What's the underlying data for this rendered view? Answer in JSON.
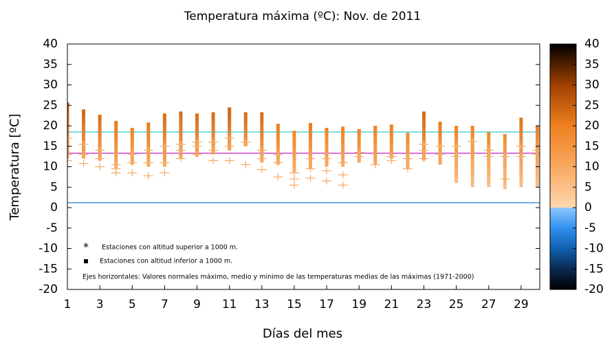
{
  "chart_data": {
    "type": "range",
    "title": "Temperatura máxima  (ºC): Nov.  de  2011",
    "xlabel": "Días del mes",
    "ylabel": "Temperatura  [ºC]",
    "x": [
      1,
      2,
      3,
      4,
      5,
      6,
      7,
      8,
      9,
      10,
      11,
      12,
      13,
      14,
      15,
      16,
      17,
      18,
      19,
      20,
      21,
      22,
      23,
      24,
      25,
      26,
      27,
      28,
      29,
      30
    ],
    "high": [
      25.7,
      24,
      22.7,
      21.2,
      19.5,
      20.8,
      23,
      23.5,
      23,
      23.3,
      24.5,
      23.3,
      23.3,
      20.5,
      18.8,
      20.7,
      19.5,
      19.8,
      19.2,
      20,
      20.3,
      18.3,
      23.5,
      21,
      20,
      20,
      18.5,
      18,
      22,
      20
    ],
    "low": [
      12,
      12,
      11.5,
      9.5,
      10.5,
      10,
      10,
      12,
      12.5,
      13,
      14,
      15,
      11,
      10.5,
      8.5,
      9.5,
      10,
      10,
      11,
      10.5,
      12,
      9.5,
      11.5,
      10.5,
      6,
      5,
      5,
      4.5,
      5,
      5
    ],
    "plus": [
      [
        11.5,
        13,
        15,
        17
      ],
      [
        10.8,
        13,
        15.5
      ],
      [
        10,
        12,
        14
      ],
      [
        8.5,
        9.5,
        10.5
      ],
      [
        8.5,
        11,
        13
      ],
      [
        7.8,
        11,
        14
      ],
      [
        8.5,
        11,
        15
      ],
      [
        12,
        14,
        15.5
      ],
      [
        13,
        15,
        16
      ],
      [
        11.5,
        14,
        16
      ],
      [
        11.5,
        15,
        17
      ],
      [
        10.5,
        16
      ],
      [
        9.3,
        12,
        14
      ],
      [
        7.5,
        11,
        13
      ],
      [
        5.5,
        7,
        8.5
      ],
      [
        7.2,
        9.5,
        12
      ],
      [
        6.5,
        9,
        12
      ],
      [
        5.5,
        8,
        11
      ],
      [
        12.5,
        13.5
      ],
      [
        10.5
      ],
      [
        11.5,
        12.5
      ],
      [
        9.5,
        12
      ],
      [
        12,
        14,
        15.5
      ],
      [
        13,
        15
      ],
      [
        12.5,
        15
      ],
      [
        16.2
      ],
      [
        12.5,
        14
      ],
      [
        7,
        12.5
      ],
      [
        12.5,
        15
      ],
      [
        13,
        14
      ]
    ],
    "xlim": [
      1,
      30.15
    ],
    "xticks": [
      1,
      3,
      5,
      7,
      9,
      11,
      13,
      15,
      17,
      19,
      21,
      23,
      25,
      27,
      29
    ],
    "ylim": [
      -20,
      40
    ],
    "yticks": [
      -20,
      -15,
      -10,
      -5,
      0,
      5,
      10,
      15,
      20,
      25,
      30,
      35,
      40
    ],
    "hlines": [
      {
        "value": 18.5,
        "color": "#40d0d0"
      },
      {
        "value": 13.3,
        "color": "#c020c0"
      },
      {
        "value": 1.2,
        "color": "#2080e0"
      }
    ],
    "plus_color": "#f4b070",
    "colorbar": {
      "lim": [
        -20,
        40
      ],
      "ticks": [
        -20,
        -15,
        -10,
        -5,
        0,
        5,
        10,
        15,
        20,
        25,
        30,
        35,
        40
      ],
      "stops": [
        {
          "value": -20,
          "color": "#000000"
        },
        {
          "value": -15,
          "color": "#0a2a50"
        },
        {
          "value": -10,
          "color": "#1060b0"
        },
        {
          "value": -5,
          "color": "#3090f0"
        },
        {
          "value": 0,
          "color": "#90c8ff"
        },
        {
          "value": 0,
          "color": "#ffd8b0"
        },
        {
          "value": 10,
          "color": "#f8a860"
        },
        {
          "value": 20,
          "color": "#f08020"
        },
        {
          "value": 30,
          "color": "#a04000"
        },
        {
          "value": 40,
          "color": "#000000"
        }
      ]
    },
    "legend": [
      {
        "symbol": "*",
        "text": "Estaciones con altitud superior a 1000 m."
      },
      {
        "text": "Estaciones con altitud inferior a 1000 m."
      }
    ],
    "note": "Ejes horizontales: Valores normales máximo, medio y minimo de las temperaturas medias de las máximas (1971-2000)"
  }
}
